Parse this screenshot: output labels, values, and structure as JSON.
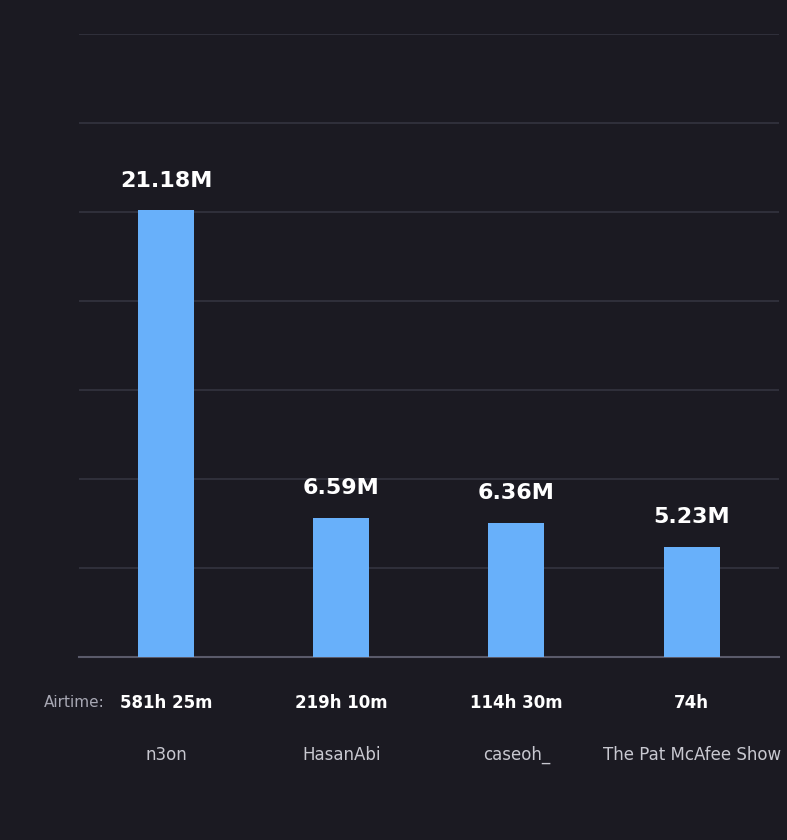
{
  "chart_data": {
    "type": "bar",
    "categories": [
      "n3on",
      "HasanAbi",
      "caseoh_",
      "The Pat McAfee Show"
    ],
    "values": [
      21.18,
      6.59,
      6.36,
      5.23
    ],
    "value_labels": [
      "21.18M",
      "6.59M",
      "6.36M",
      "5.23M"
    ],
    "data_labels": true,
    "airtime_label": "Airtime:",
    "airtime": [
      "581h 25m",
      "219h 10m",
      "114h 30m",
      "74h"
    ],
    "color": "#68b0fa",
    "ylim": [
      0,
      29.54
    ],
    "yticks": [
      0,
      4.22,
      8.44,
      12.66,
      16.88,
      21.1,
      25.32,
      29.54
    ],
    "grid": true,
    "tick_labels": "x"
  }
}
